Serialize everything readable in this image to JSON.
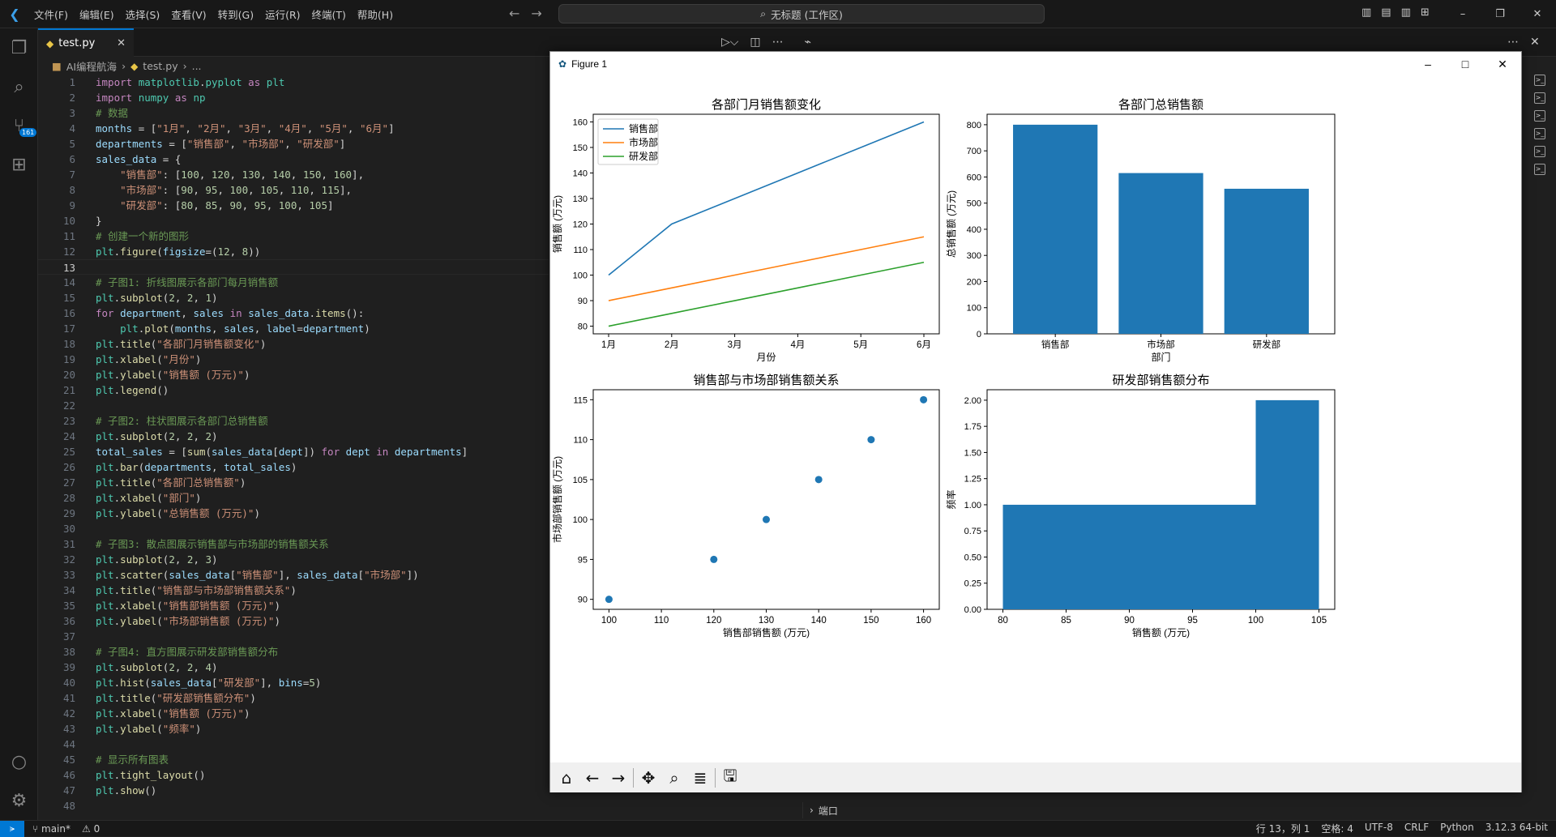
{
  "titlebar": {
    "menus": [
      "文件(F)",
      "编辑(E)",
      "选择(S)",
      "查看(V)",
      "转到(G)",
      "运行(R)",
      "终端(T)",
      "帮助(H)"
    ],
    "search_text": "无标题 (工作区)"
  },
  "activity_badge": "161",
  "tab": {
    "label": "test.py"
  },
  "breadcrumb": {
    "folder": "AI编程航海",
    "file": "test.py",
    "more": "..."
  },
  "code_lines": [
    "import matplotlib.pyplot as plt",
    "import numpy as np",
    "# 数据",
    "months = [\"1月\", \"2月\", \"3月\", \"4月\", \"5月\", \"6月\"]",
    "departments = [\"销售部\", \"市场部\", \"研发部\"]",
    "sales_data = {",
    "    \"销售部\": [100, 120, 130, 140, 150, 160],",
    "    \"市场部\": [90, 95, 100, 105, 110, 115],",
    "    \"研发部\": [80, 85, 90, 95, 100, 105]",
    "}",
    "# 创建一个新的图形",
    "plt.figure(figsize=(12, 8))",
    "",
    "# 子图1: 折线图展示各部门每月销售额",
    "plt.subplot(2, 2, 1)",
    "for department, sales in sales_data.items():",
    "    plt.plot(months, sales, label=department)",
    "plt.title(\"各部门月销售额变化\")",
    "plt.xlabel(\"月份\")",
    "plt.ylabel(\"销售额 (万元)\")",
    "plt.legend()",
    "",
    "# 子图2: 柱状图展示各部门总销售额",
    "plt.subplot(2, 2, 2)",
    "total_sales = [sum(sales_data[dept]) for dept in departments]",
    "plt.bar(departments, total_sales)",
    "plt.title(\"各部门总销售额\")",
    "plt.xlabel(\"部门\")",
    "plt.ylabel(\"总销售额 (万元)\")",
    "",
    "# 子图3: 散点图展示销售部与市场部的销售额关系",
    "plt.subplot(2, 2, 3)",
    "plt.scatter(sales_data[\"销售部\"], sales_data[\"市场部\"])",
    "plt.title(\"销售部与市场部销售额关系\")",
    "plt.xlabel(\"销售部销售额 (万元)\")",
    "plt.ylabel(\"市场部销售额 (万元)\")",
    "",
    "# 子图4: 直方图展示研发部销售额分布",
    "plt.subplot(2, 2, 4)",
    "plt.hist(sales_data[\"研发部\"], bins=5)",
    "plt.title(\"研发部销售额分布\")",
    "plt.xlabel(\"销售额 (万元)\")",
    "plt.ylabel(\"频率\")",
    "",
    "# 显示所有图表",
    "plt.tight_layout()",
    "plt.show()",
    ""
  ],
  "current_line": 13,
  "figure": {
    "window_title": "Figure 1"
  },
  "terminal_label": "端口",
  "status": {
    "branch": "main*",
    "problems": "0",
    "position": "行 13，列 1",
    "spaces": "空格: 4",
    "encoding": "UTF-8",
    "eol": "CRLF",
    "language": "Python",
    "version": "3.12.3 64-bit"
  },
  "colors": {
    "blue": "#1f77b4",
    "orange": "#ff7f0e",
    "green": "#2ca02c",
    "accent": "#0078d4"
  },
  "chart_data": [
    {
      "type": "line",
      "title": "各部门月销售额变化",
      "xlabel": "月份",
      "ylabel": "销售额 (万元)",
      "categories": [
        "1月",
        "2月",
        "3月",
        "4月",
        "5月",
        "6月"
      ],
      "ylim": [
        77,
        163
      ],
      "yticks": [
        80,
        90,
        100,
        110,
        120,
        130,
        140,
        150,
        160
      ],
      "legend": "top-left",
      "series": [
        {
          "name": "销售部",
          "values": [
            100,
            120,
            130,
            140,
            150,
            160
          ]
        },
        {
          "name": "市场部",
          "values": [
            90,
            95,
            100,
            105,
            110,
            115
          ]
        },
        {
          "name": "研发部",
          "values": [
            80,
            85,
            90,
            95,
            100,
            105
          ]
        }
      ]
    },
    {
      "type": "bar",
      "title": "各部门总销售额",
      "xlabel": "部门",
      "ylabel": "总销售额 (万元)",
      "categories": [
        "销售部",
        "市场部",
        "研发部"
      ],
      "values": [
        800,
        615,
        555
      ],
      "ylim": [
        0,
        840
      ],
      "yticks": [
        0,
        100,
        200,
        300,
        400,
        500,
        600,
        700,
        800
      ]
    },
    {
      "type": "scatter",
      "title": "销售部与市场部销售额关系",
      "xlabel": "销售部销售额 (万元)",
      "ylabel": "市场部销售额 (万元)",
      "x": [
        100,
        120,
        130,
        140,
        150,
        160
      ],
      "y": [
        90,
        95,
        100,
        105,
        110,
        115
      ],
      "xlim": [
        97,
        163
      ],
      "ylim": [
        88.75,
        116.25
      ],
      "xticks": [
        100,
        110,
        120,
        130,
        140,
        150,
        160
      ],
      "yticks": [
        90,
        95,
        100,
        105,
        110,
        115
      ]
    },
    {
      "type": "bar",
      "title": "研发部销售额分布",
      "xlabel": "销售额 (万元)",
      "ylabel": "频率",
      "bins": [
        [
          80,
          85
        ],
        [
          85,
          90
        ],
        [
          90,
          95
        ],
        [
          95,
          100
        ],
        [
          100,
          105
        ]
      ],
      "values": [
        1,
        1,
        1,
        1,
        2
      ],
      "xlim": [
        78.75,
        106.25
      ],
      "ylim": [
        0,
        2.1
      ],
      "xticks": [
        80,
        85,
        90,
        95,
        100,
        105
      ],
      "yticks": [
        "0.00",
        "0.25",
        "0.50",
        "0.75",
        "1.00",
        "1.25",
        "1.50",
        "1.75",
        "2.00"
      ]
    }
  ]
}
